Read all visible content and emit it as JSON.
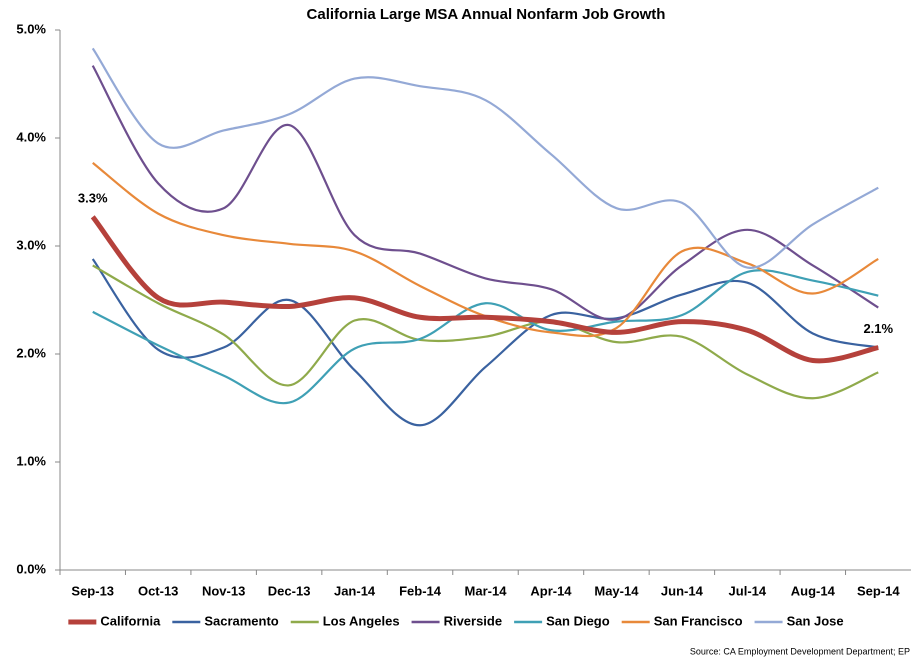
{
  "chart_data": {
    "type": "line",
    "title": "California Large MSA Annual Nonfarm Job Growth",
    "source": "Source:  CA Employment Development Department; EP",
    "categories": [
      "Sep-13",
      "Oct-13",
      "Nov-13",
      "Dec-13",
      "Jan-14",
      "Feb-14",
      "Mar-14",
      "Apr-14",
      "May-14",
      "Jun-14",
      "Jul-14",
      "Aug-14",
      "Sep-14"
    ],
    "ylim": [
      0,
      5
    ],
    "yticks": [
      {
        "value": 0,
        "label": "0.0%"
      },
      {
        "value": 1,
        "label": "1.0%"
      },
      {
        "value": 2,
        "label": "2.0%"
      },
      {
        "value": 3,
        "label": "3.0%"
      },
      {
        "value": 4,
        "label": "4.0%"
      },
      {
        "value": 5,
        "label": "5.0%"
      }
    ],
    "legend": "bottom",
    "series": [
      {
        "name": "California",
        "color": "#b5413b",
        "values": [
          3.27,
          2.52,
          2.48,
          2.44,
          2.52,
          2.34,
          2.34,
          2.3,
          2.2,
          2.3,
          2.22,
          1.94,
          2.06
        ],
        "value_labels": [
          "3.3%",
          null,
          null,
          null,
          null,
          null,
          null,
          null,
          null,
          null,
          null,
          null,
          "2.1%"
        ]
      },
      {
        "name": "Sacramento",
        "color": "#3a62a0",
        "values": [
          2.88,
          2.04,
          2.06,
          2.5,
          1.85,
          1.34,
          1.88,
          2.36,
          2.33,
          2.55,
          2.66,
          2.19,
          2.06
        ]
      },
      {
        "name": "Los Angeles",
        "color": "#8faa4b",
        "values": [
          2.82,
          2.47,
          2.18,
          1.71,
          2.31,
          2.13,
          2.16,
          2.3,
          2.11,
          2.16,
          1.81,
          1.59,
          1.83
        ]
      },
      {
        "name": "Riverside",
        "color": "#6e4f8e",
        "values": [
          4.67,
          3.58,
          3.35,
          4.12,
          3.1,
          2.93,
          2.7,
          2.6,
          2.32,
          2.82,
          3.15,
          2.82,
          2.43
        ]
      },
      {
        "name": "San Diego",
        "color": "#3fa0b5",
        "values": [
          2.39,
          2.08,
          1.8,
          1.55,
          2.05,
          2.14,
          2.47,
          2.22,
          2.3,
          2.36,
          2.76,
          2.68,
          2.54
        ]
      },
      {
        "name": "San Francisco",
        "color": "#e8893a",
        "values": [
          3.77,
          3.3,
          3.1,
          3.02,
          2.95,
          2.63,
          2.35,
          2.2,
          2.24,
          2.95,
          2.84,
          2.56,
          2.88
        ]
      },
      {
        "name": "San Jose",
        "color": "#94a9d6",
        "values": [
          4.83,
          3.95,
          4.07,
          4.22,
          4.55,
          4.48,
          4.35,
          3.85,
          3.35,
          3.4,
          2.8,
          3.2,
          3.54
        ]
      }
    ]
  }
}
